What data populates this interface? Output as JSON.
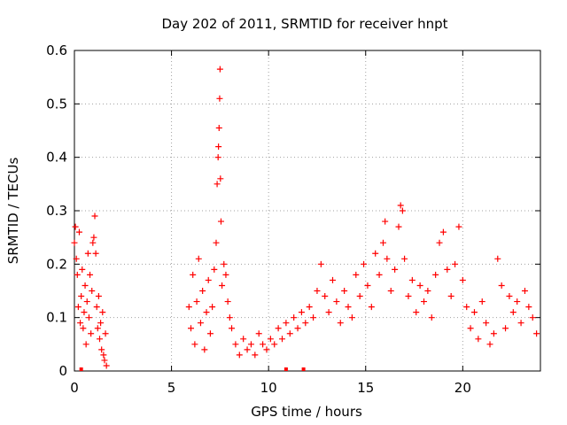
{
  "chart_data": {
    "type": "scatter",
    "title": "Day 202 of 2011, SRMTID for receiver hnpt",
    "xlabel": "GPS time / hours",
    "ylabel": "SRMTID / TECUs",
    "xlim": [
      0,
      24
    ],
    "ylim": [
      0,
      0.6
    ],
    "xticks": [
      0,
      5,
      10,
      15,
      20
    ],
    "yticks": [
      0,
      0.1,
      0.2,
      0.3,
      0.4,
      0.5,
      0.6
    ],
    "xtick_labels": [
      "0",
      "5",
      "10",
      "15",
      "20"
    ],
    "ytick_labels": [
      "0",
      "0.1",
      "0.2",
      "0.3",
      "0.4",
      "0.5",
      "0.6"
    ],
    "grid": true,
    "marker": "+",
    "color": "#ff0000",
    "series": [
      {
        "name": "SRMTID",
        "points": [
          [
            0.0,
            0.24
          ],
          [
            0.05,
            0.27
          ],
          [
            0.1,
            0.21
          ],
          [
            0.15,
            0.18
          ],
          [
            0.2,
            0.12
          ],
          [
            0.25,
            0.26
          ],
          [
            0.3,
            0.09
          ],
          [
            0.35,
            0.14
          ],
          [
            0.4,
            0.19
          ],
          [
            0.45,
            0.08
          ],
          [
            0.5,
            0.11
          ],
          [
            0.55,
            0.16
          ],
          [
            0.6,
            0.05
          ],
          [
            0.65,
            0.13
          ],
          [
            0.7,
            0.22
          ],
          [
            0.75,
            0.1
          ],
          [
            0.8,
            0.18
          ],
          [
            0.85,
            0.07
          ],
          [
            0.9,
            0.15
          ],
          [
            0.95,
            0.24
          ],
          [
            1.0,
            0.25
          ],
          [
            1.05,
            0.29
          ],
          [
            1.1,
            0.22
          ],
          [
            1.15,
            0.12
          ],
          [
            1.2,
            0.08
          ],
          [
            1.25,
            0.14
          ],
          [
            1.3,
            0.06
          ],
          [
            1.35,
            0.09
          ],
          [
            1.4,
            0.04
          ],
          [
            1.45,
            0.11
          ],
          [
            1.5,
            0.03
          ],
          [
            1.55,
            0.02
          ],
          [
            1.6,
            0.07
          ],
          [
            1.65,
            0.01
          ],
          [
            5.9,
            0.12
          ],
          [
            6.0,
            0.08
          ],
          [
            6.1,
            0.18
          ],
          [
            6.2,
            0.05
          ],
          [
            6.3,
            0.13
          ],
          [
            6.4,
            0.21
          ],
          [
            6.5,
            0.09
          ],
          [
            6.6,
            0.15
          ],
          [
            6.7,
            0.04
          ],
          [
            6.8,
            0.11
          ],
          [
            6.9,
            0.17
          ],
          [
            7.0,
            0.07
          ],
          [
            7.1,
            0.12
          ],
          [
            7.2,
            0.19
          ],
          [
            7.3,
            0.24
          ],
          [
            7.35,
            0.35
          ],
          [
            7.4,
            0.4
          ],
          [
            7.42,
            0.42
          ],
          [
            7.45,
            0.455
          ],
          [
            7.48,
            0.51
          ],
          [
            7.5,
            0.565
          ],
          [
            7.52,
            0.36
          ],
          [
            7.55,
            0.28
          ],
          [
            7.6,
            0.16
          ],
          [
            7.7,
            0.2
          ],
          [
            7.8,
            0.18
          ],
          [
            7.9,
            0.13
          ],
          [
            8.0,
            0.1
          ],
          [
            8.1,
            0.08
          ],
          [
            8.3,
            0.05
          ],
          [
            8.5,
            0.03
          ],
          [
            8.7,
            0.06
          ],
          [
            8.9,
            0.04
          ],
          [
            9.1,
            0.05
          ],
          [
            9.3,
            0.03
          ],
          [
            9.5,
            0.07
          ],
          [
            9.7,
            0.05
          ],
          [
            9.9,
            0.04
          ],
          [
            10.1,
            0.06
          ],
          [
            10.3,
            0.05
          ],
          [
            10.5,
            0.08
          ],
          [
            10.7,
            0.06
          ],
          [
            10.9,
            0.09
          ],
          [
            11.1,
            0.07
          ],
          [
            11.3,
            0.1
          ],
          [
            11.5,
            0.08
          ],
          [
            11.7,
            0.11
          ],
          [
            11.9,
            0.09
          ],
          [
            12.1,
            0.12
          ],
          [
            12.3,
            0.1
          ],
          [
            12.5,
            0.15
          ],
          [
            12.7,
            0.2
          ],
          [
            12.9,
            0.14
          ],
          [
            13.1,
            0.11
          ],
          [
            13.3,
            0.17
          ],
          [
            13.5,
            0.13
          ],
          [
            13.7,
            0.09
          ],
          [
            13.9,
            0.15
          ],
          [
            14.1,
            0.12
          ],
          [
            14.3,
            0.1
          ],
          [
            14.5,
            0.18
          ],
          [
            14.7,
            0.14
          ],
          [
            14.9,
            0.2
          ],
          [
            15.1,
            0.16
          ],
          [
            15.3,
            0.12
          ],
          [
            15.5,
            0.22
          ],
          [
            15.7,
            0.18
          ],
          [
            15.9,
            0.24
          ],
          [
            16.0,
            0.28
          ],
          [
            16.1,
            0.21
          ],
          [
            16.3,
            0.15
          ],
          [
            16.5,
            0.19
          ],
          [
            16.7,
            0.27
          ],
          [
            16.8,
            0.31
          ],
          [
            16.9,
            0.3
          ],
          [
            17.0,
            0.21
          ],
          [
            17.2,
            0.14
          ],
          [
            17.4,
            0.17
          ],
          [
            17.6,
            0.11
          ],
          [
            17.8,
            0.16
          ],
          [
            18.0,
            0.13
          ],
          [
            18.2,
            0.15
          ],
          [
            18.4,
            0.1
          ],
          [
            18.6,
            0.18
          ],
          [
            18.8,
            0.24
          ],
          [
            19.0,
            0.26
          ],
          [
            19.2,
            0.19
          ],
          [
            19.4,
            0.14
          ],
          [
            19.6,
            0.2
          ],
          [
            19.8,
            0.27
          ],
          [
            20.0,
            0.17
          ],
          [
            20.2,
            0.12
          ],
          [
            20.4,
            0.08
          ],
          [
            20.6,
            0.11
          ],
          [
            20.8,
            0.06
          ],
          [
            21.0,
            0.13
          ],
          [
            21.2,
            0.09
          ],
          [
            21.4,
            0.05
          ],
          [
            21.6,
            0.07
          ],
          [
            21.8,
            0.21
          ],
          [
            22.0,
            0.16
          ],
          [
            22.2,
            0.08
          ],
          [
            22.4,
            0.14
          ],
          [
            22.6,
            0.11
          ],
          [
            22.8,
            0.13
          ],
          [
            23.0,
            0.09
          ],
          [
            23.2,
            0.15
          ],
          [
            23.4,
            0.12
          ],
          [
            23.6,
            0.1
          ],
          [
            23.8,
            0.07
          ]
        ]
      }
    ],
    "baseline_marks_x": [
      0.35,
      10.9,
      11.8
    ]
  }
}
